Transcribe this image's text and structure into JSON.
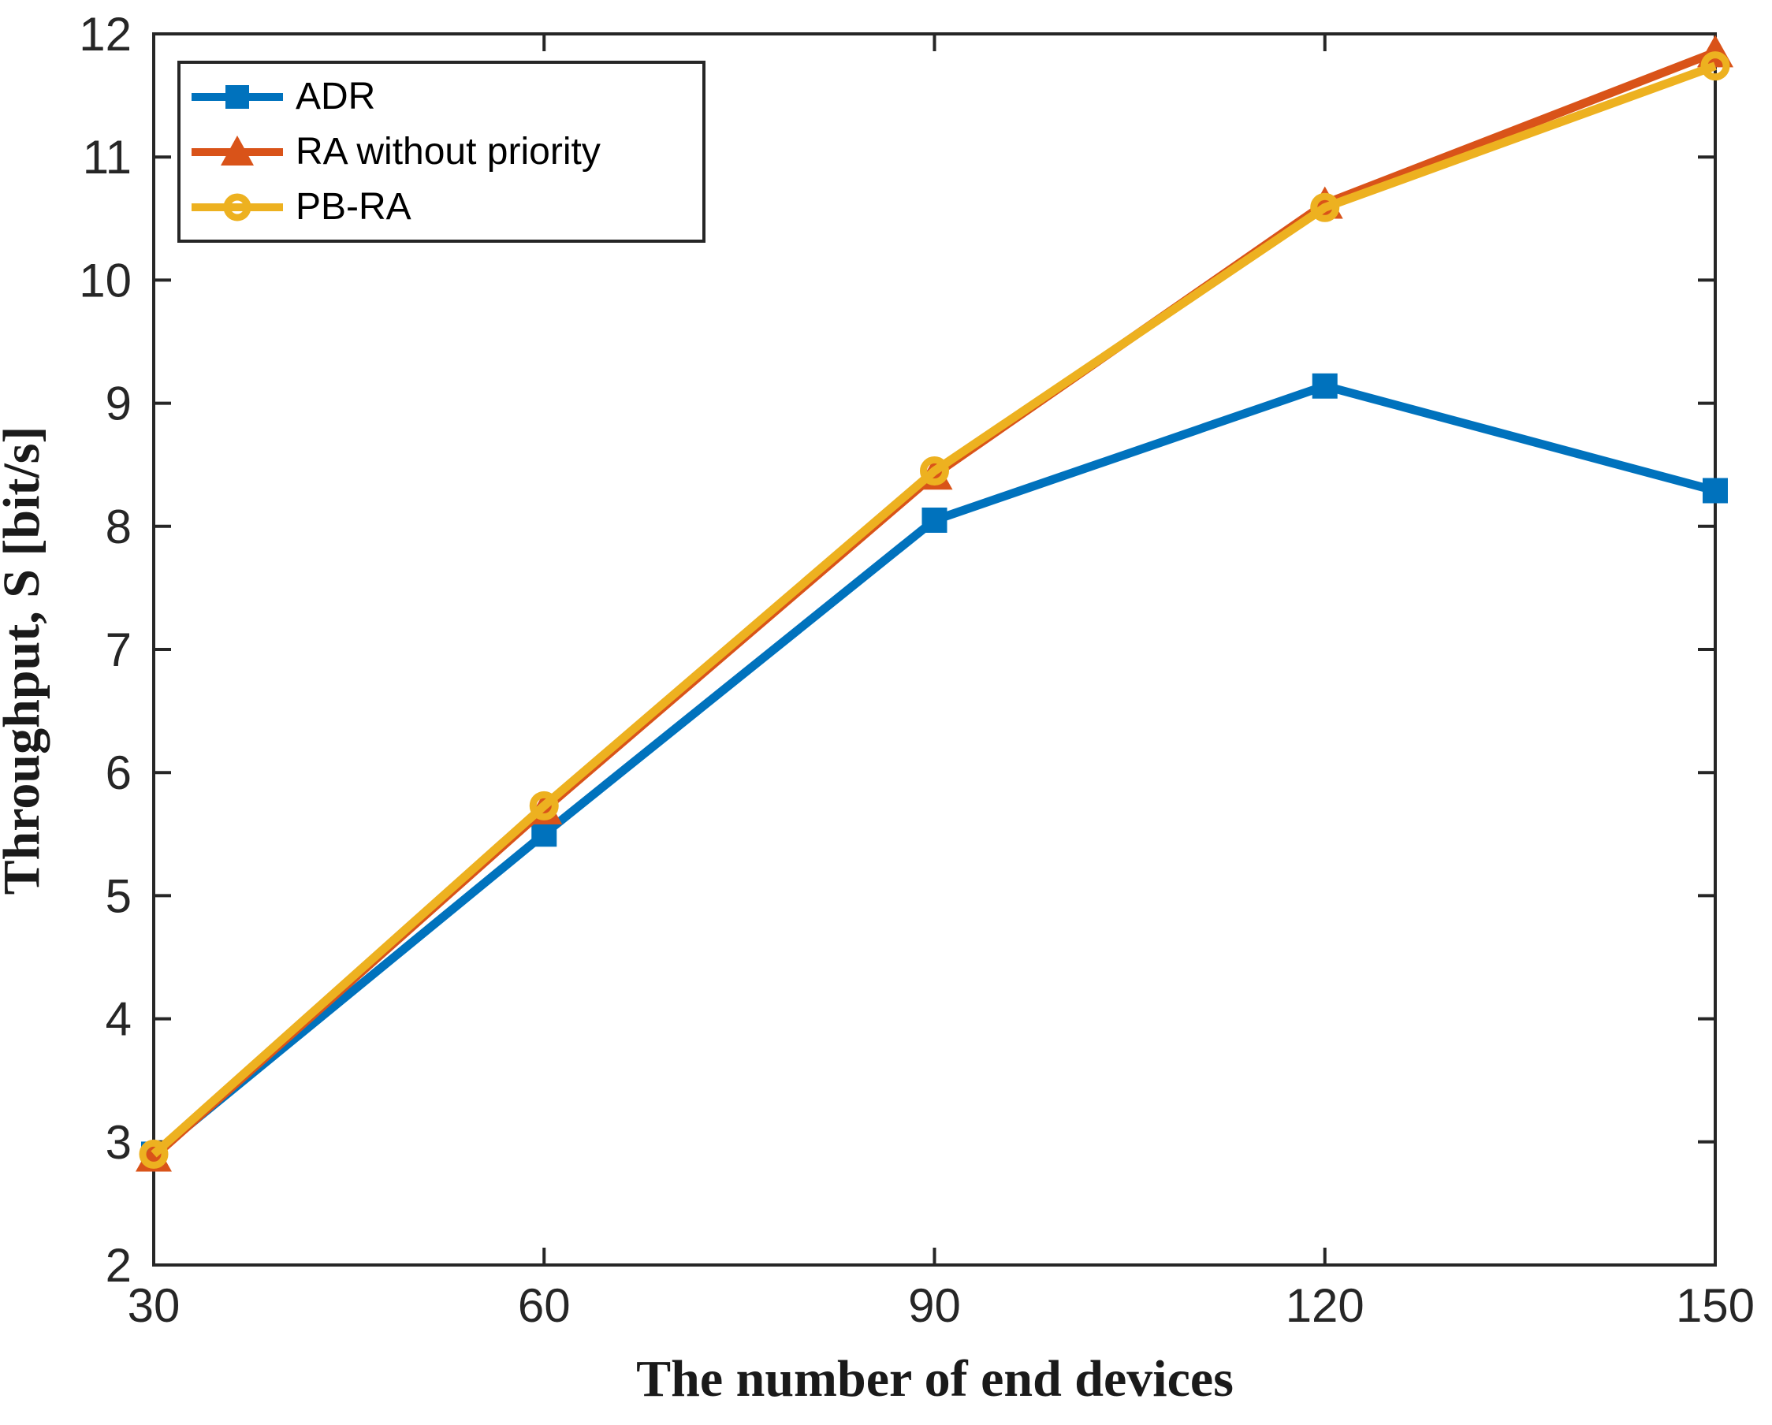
{
  "figure": {
    "background": "#ffffff",
    "axes_color": "#262626",
    "tick_label_color": "#262626"
  },
  "chart_data": {
    "type": "line",
    "title": "",
    "xlabel": "The number of end devices",
    "ylabel": "Throughput, S [bit/s]",
    "xlim": [
      30,
      150
    ],
    "ylim": [
      2,
      12
    ],
    "x_ticks": [
      30,
      60,
      90,
      120,
      150
    ],
    "y_ticks": [
      2,
      3,
      4,
      5,
      6,
      7,
      8,
      9,
      10,
      11,
      12
    ],
    "grid": false,
    "legend_position": "top-left",
    "x": [
      30,
      60,
      90,
      120,
      150
    ],
    "series": [
      {
        "name": "ADR",
        "color": "#0072BD",
        "marker": "square",
        "values": [
          2.9,
          5.5,
          8.05,
          9.14,
          8.29
        ]
      },
      {
        "name": "RA without priority",
        "color": "#D95319",
        "marker": "triangle",
        "values": [
          2.88,
          5.7,
          8.42,
          10.62,
          11.85
        ]
      },
      {
        "name": "PB-RA",
        "color": "#EDB120",
        "marker": "circle",
        "values": [
          2.9,
          5.73,
          8.45,
          10.59,
          11.74
        ]
      }
    ]
  }
}
